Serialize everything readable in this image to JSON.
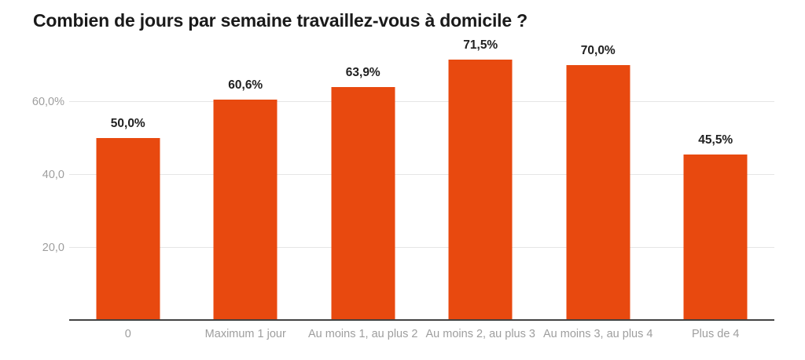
{
  "chart_data": {
    "type": "bar",
    "title": "Combien de jours par semaine travaillez-vous à domicile ?",
    "categories": [
      "0",
      "Maximum 1 jour",
      "Au moins 1, au plus 2",
      "Au moins 2, au plus 3",
      "Au moins 3, au plus 4",
      "Plus de 4"
    ],
    "values": [
      50.0,
      60.6,
      63.9,
      71.5,
      70.0,
      45.5
    ],
    "value_labels": [
      "50,0%",
      "60,6%",
      "63,9%",
      "71,5%",
      "70,0%",
      "45,5%"
    ],
    "y_ticks": [
      {
        "value": 20,
        "label": "20,0"
      },
      {
        "value": 40,
        "label": "40,0"
      },
      {
        "value": 60,
        "label": "60,0%"
      }
    ],
    "xlabel": "",
    "ylabel": "",
    "ylim": [
      0,
      76
    ],
    "grid": "horizontal-only",
    "legend": "none",
    "unit": "percent"
  },
  "colors": {
    "bar": "#E8490F",
    "title_text": "#1a1a1a",
    "value_label_text": "#212121",
    "axis_line": "#424242",
    "gridline": "#e6e6e6",
    "tick_text": "#9e9e9e",
    "category_text": "#9e9e9e",
    "background": "#ffffff"
  }
}
